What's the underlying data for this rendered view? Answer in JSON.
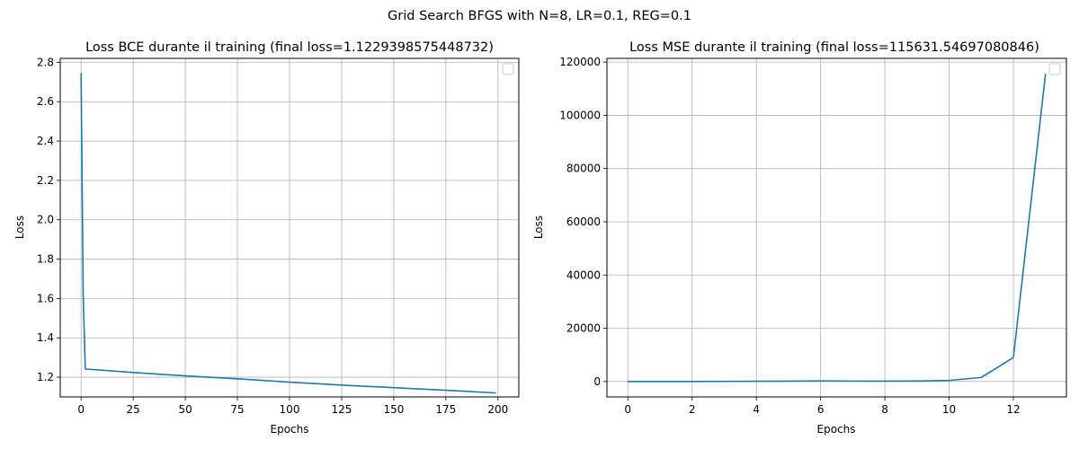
{
  "figure": {
    "suptitle": "Grid Search BFGS with N=8, LR=0.1, REG=0.1"
  },
  "chart_data": [
    {
      "type": "line",
      "title": "Loss BCE durante il training (final loss=1.1229398575448732)",
      "xlabel": "Epochs",
      "ylabel": "Loss",
      "xlim": [
        -10,
        210
      ],
      "ylim": [
        1.1,
        2.82
      ],
      "xticks": [
        0,
        25,
        50,
        75,
        100,
        125,
        150,
        175,
        200
      ],
      "yticks": [
        1.2,
        1.4,
        1.6,
        1.8,
        2.0,
        2.2,
        2.4,
        2.6,
        2.8
      ],
      "ytick_format": 1,
      "grid": true,
      "legend": "top-right",
      "legend_entries": [],
      "series": [
        {
          "color": "#1f77b4",
          "x": [
            0,
            1,
            2,
            25,
            50,
            75,
            100,
            125,
            150,
            175,
            199
          ],
          "y": [
            2.745,
            1.62,
            1.242,
            1.224,
            1.207,
            1.192,
            1.175,
            1.16,
            1.147,
            1.134,
            1.12
          ]
        }
      ]
    },
    {
      "type": "line",
      "title": "Loss MSE durante il training (final loss=115631.54697080846)",
      "xlabel": "Epochs",
      "ylabel": "Loss",
      "xlim": [
        -0.65,
        13.65
      ],
      "ylim": [
        -5800,
        121400
      ],
      "xticks": [
        0,
        2,
        4,
        6,
        8,
        10,
        12
      ],
      "yticks": [
        0,
        20000,
        40000,
        60000,
        80000,
        100000,
        120000
      ],
      "ytick_format": 0,
      "grid": true,
      "legend": "top-right",
      "legend_entries": [],
      "series": [
        {
          "color": "#1f77b4",
          "x": [
            0,
            1,
            2,
            3,
            4,
            5,
            6,
            7,
            8,
            9,
            10,
            11,
            12,
            13
          ],
          "y": [
            0,
            0,
            0,
            50,
            80,
            120,
            200,
            150,
            120,
            180,
            400,
            1500,
            9000,
            115631.55
          ]
        }
      ]
    }
  ]
}
